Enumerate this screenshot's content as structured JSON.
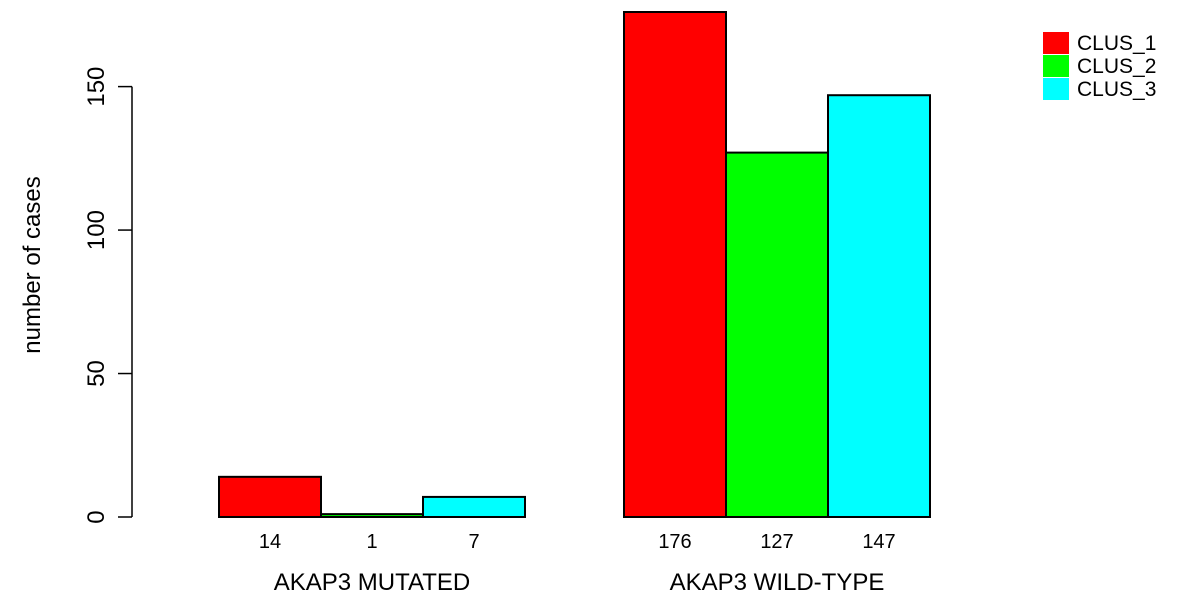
{
  "chart_data": {
    "type": "bar",
    "categories": [
      "AKAP3 MUTATED",
      "AKAP3 WILD-TYPE"
    ],
    "series": [
      {
        "name": "CLUS_1",
        "color": "#ff0000",
        "values": [
          14,
          176
        ]
      },
      {
        "name": "CLUS_2",
        "color": "#00ff00",
        "values": [
          1,
          127
        ]
      },
      {
        "name": "CLUS_3",
        "color": "#00ffff",
        "values": [
          7,
          147
        ]
      }
    ],
    "ylabel": "number of cases",
    "xlabel": "",
    "title": "",
    "ylim": [
      0,
      176
    ],
    "yticks": [
      0,
      50,
      100,
      150
    ],
    "grid": false,
    "legend_position": "top-right"
  }
}
